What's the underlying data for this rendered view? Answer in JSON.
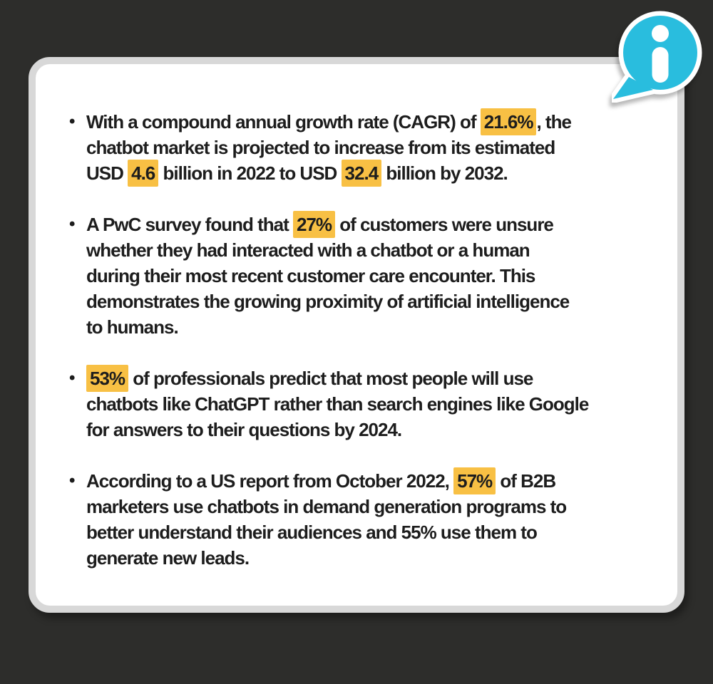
{
  "colors": {
    "background": "#2d2d2b",
    "card": "#ffffff",
    "card_border": "#d8d8d8",
    "highlight": "#f8c044",
    "text": "#1d1d1d",
    "icon": "#29bdde"
  },
  "bullet_marker": "•",
  "info_icon": {
    "glyph": "i"
  },
  "bullets": [
    {
      "lines": [
        [
          {
            "t": "With a compound annual growth rate (CAGR) of ",
            "h": false
          },
          {
            "t": "21.6%",
            "h": true
          },
          {
            "t": ", the",
            "h": false
          }
        ],
        [
          {
            "t": "chatbot market is projected to increase from its estimated",
            "h": false
          }
        ],
        [
          {
            "t": "USD ",
            "h": false
          },
          {
            "t": "4.6",
            "h": true
          },
          {
            "t": " billion in 2022 to USD ",
            "h": false
          },
          {
            "t": "32.4",
            "h": true
          },
          {
            "t": " billion by 2032.",
            "h": false
          }
        ]
      ]
    },
    {
      "lines": [
        [
          {
            "t": "A PwC survey found that ",
            "h": false
          },
          {
            "t": "27%",
            "h": true
          },
          {
            "t": " of customers were unsure",
            "h": false
          }
        ],
        [
          {
            "t": "whether they had interacted with a chatbot or a human",
            "h": false
          }
        ],
        [
          {
            "t": "during their most recent customer care encounter. This",
            "h": false
          }
        ],
        [
          {
            "t": "demonstrates the growing proximity of artificial intelligence",
            "h": false
          }
        ],
        [
          {
            "t": "to humans.",
            "h": false
          }
        ]
      ]
    },
    {
      "lines": [
        [
          {
            "t": "53%",
            "h": true
          },
          {
            "t": " of professionals predict that most people will use",
            "h": false
          }
        ],
        [
          {
            "t": "chatbots like ChatGPT rather than search engines like Google",
            "h": false
          }
        ],
        [
          {
            "t": "for answers to their questions by 2024.",
            "h": false
          }
        ]
      ]
    },
    {
      "lines": [
        [
          {
            "t": "According to a US report from October 2022, ",
            "h": false
          },
          {
            "t": "57%",
            "h": true
          },
          {
            "t": " of B2B",
            "h": false
          }
        ],
        [
          {
            "t": "marketers use chatbots in demand generation programs to",
            "h": false
          }
        ],
        [
          {
            "t": "better understand their audiences and 55% use them to",
            "h": false
          }
        ],
        [
          {
            "t": "generate new leads.",
            "h": false
          }
        ]
      ]
    }
  ]
}
